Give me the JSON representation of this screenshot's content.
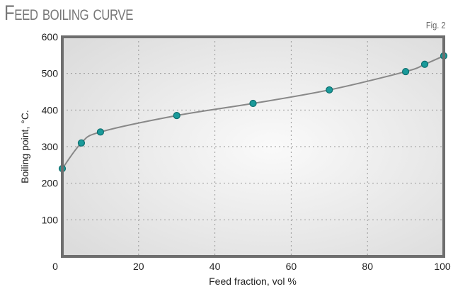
{
  "title": "Feed boiling curve",
  "figure_label": "Fig. 2",
  "chart_data": {
    "type": "line",
    "title": "Feed boiling curve",
    "xlabel": "Feed fraction, vol %",
    "ylabel": "Boiling point, °C.",
    "xlim": [
      0,
      100
    ],
    "ylim": [
      0,
      600
    ],
    "xticks": [
      "0",
      "20",
      "40",
      "60",
      "80",
      "100"
    ],
    "yticks": [
      "100",
      "200",
      "300",
      "400",
      "500",
      "600"
    ],
    "grid": true,
    "series": [
      {
        "x": [
          0,
          5,
          10,
          30,
          50,
          70,
          90,
          95,
          100
        ],
        "y": [
          240,
          310,
          340,
          385,
          418,
          455,
          505,
          525,
          548
        ]
      }
    ],
    "colors": {
      "marker": "#1a9a9a",
      "line": "#888888",
      "frame": "#6e6e6e"
    }
  }
}
